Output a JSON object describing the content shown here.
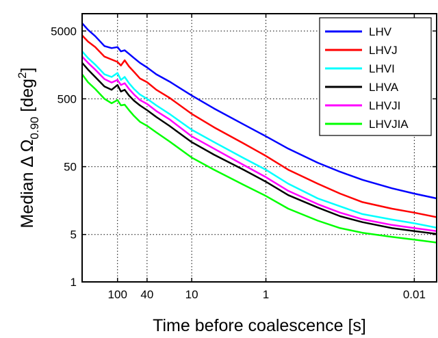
{
  "chart_data": {
    "type": "line",
    "xlabel": "Time before coalescence [s]",
    "ylabel": {
      "main": "Median Δ Ω",
      "sub": "0.90",
      "unit_pre": " [deg",
      "sup": "2",
      "unit_post": "]"
    },
    "x_scale": "log-reversed",
    "y_scale": "log",
    "xlim": [
      300,
      0.005
    ],
    "ylim": [
      1,
      9000
    ],
    "x_ticks": [
      100,
      40,
      10,
      1,
      0.01
    ],
    "x_tick_labels": [
      "100",
      "40",
      "10",
      "1",
      "0.01"
    ],
    "y_ticks": [
      1,
      5,
      50,
      500,
      5000
    ],
    "y_tick_labels": [
      "1",
      "5",
      "50",
      "500",
      "5000"
    ],
    "grid": true,
    "legend_position": "top-right",
    "series": [
      {
        "name": "LHV",
        "color": "#0000ff",
        "points": [
          [
            300,
            6500
          ],
          [
            250,
            5200
          ],
          [
            200,
            4200
          ],
          [
            150,
            3000
          ],
          [
            120,
            2800
          ],
          [
            100,
            2900
          ],
          [
            90,
            2500
          ],
          [
            80,
            2600
          ],
          [
            70,
            2300
          ],
          [
            60,
            2000
          ],
          [
            50,
            1700
          ],
          [
            40,
            1450
          ],
          [
            30,
            1150
          ],
          [
            20,
            900
          ],
          [
            10,
            560
          ],
          [
            5,
            360
          ],
          [
            2,
            210
          ],
          [
            1,
            140
          ],
          [
            0.5,
            92
          ],
          [
            0.2,
            57
          ],
          [
            0.1,
            42
          ],
          [
            0.05,
            32
          ],
          [
            0.02,
            24
          ],
          [
            0.01,
            20
          ],
          [
            0.005,
            17
          ]
        ]
      },
      {
        "name": "LHVJ",
        "color": "#ff0000",
        "points": [
          [
            300,
            4300
          ],
          [
            250,
            3500
          ],
          [
            200,
            2900
          ],
          [
            150,
            2100
          ],
          [
            120,
            1900
          ],
          [
            100,
            1750
          ],
          [
            90,
            1550
          ],
          [
            80,
            1850
          ],
          [
            70,
            1500
          ],
          [
            60,
            1250
          ],
          [
            50,
            1000
          ],
          [
            40,
            880
          ],
          [
            30,
            680
          ],
          [
            20,
            520
          ],
          [
            10,
            300
          ],
          [
            5,
            190
          ],
          [
            2,
            110
          ],
          [
            1,
            72
          ],
          [
            0.5,
            45
          ],
          [
            0.2,
            28
          ],
          [
            0.1,
            20
          ],
          [
            0.05,
            15
          ],
          [
            0.02,
            12
          ],
          [
            0.01,
            10.5
          ],
          [
            0.005,
            9
          ]
        ]
      },
      {
        "name": "LHVI",
        "color": "#00ffff",
        "points": [
          [
            300,
            2500
          ],
          [
            250,
            2000
          ],
          [
            200,
            1600
          ],
          [
            150,
            1150
          ],
          [
            120,
            1050
          ],
          [
            100,
            1200
          ],
          [
            90,
            950
          ],
          [
            80,
            1050
          ],
          [
            70,
            850
          ],
          [
            60,
            700
          ],
          [
            50,
            580
          ],
          [
            40,
            500
          ],
          [
            30,
            400
          ],
          [
            20,
            300
          ],
          [
            10,
            175
          ],
          [
            5,
            115
          ],
          [
            2,
            67
          ],
          [
            1,
            45
          ],
          [
            0.5,
            28
          ],
          [
            0.2,
            17
          ],
          [
            0.1,
            13
          ],
          [
            0.05,
            10
          ],
          [
            0.02,
            8.3
          ],
          [
            0.01,
            7.3
          ],
          [
            0.005,
            6.3
          ]
        ]
      },
      {
        "name": "LHVA",
        "color": "#000000",
        "points": [
          [
            300,
            1700
          ],
          [
            250,
            1350
          ],
          [
            200,
            1050
          ],
          [
            150,
            760
          ],
          [
            120,
            680
          ],
          [
            100,
            800
          ],
          [
            90,
            640
          ],
          [
            80,
            680
          ],
          [
            70,
            560
          ],
          [
            60,
            470
          ],
          [
            50,
            400
          ],
          [
            40,
            340
          ],
          [
            30,
            270
          ],
          [
            20,
            200
          ],
          [
            10,
            115
          ],
          [
            5,
            75
          ],
          [
            2,
            45
          ],
          [
            1,
            30
          ],
          [
            0.5,
            19
          ],
          [
            0.2,
            12.5
          ],
          [
            0.1,
            9.3
          ],
          [
            0.05,
            7.6
          ],
          [
            0.02,
            6.2
          ],
          [
            0.01,
            5.6
          ],
          [
            0.005,
            5.1
          ]
        ]
      },
      {
        "name": "LHVJI",
        "color": "#ff00ff",
        "points": [
          [
            300,
            2100
          ],
          [
            250,
            1700
          ],
          [
            200,
            1350
          ],
          [
            150,
            980
          ],
          [
            120,
            870
          ],
          [
            100,
            950
          ],
          [
            90,
            800
          ],
          [
            80,
            850
          ],
          [
            70,
            700
          ],
          [
            60,
            580
          ],
          [
            50,
            480
          ],
          [
            40,
            420
          ],
          [
            30,
            330
          ],
          [
            20,
            250
          ],
          [
            10,
            140
          ],
          [
            5,
            92
          ],
          [
            2,
            53
          ],
          [
            1,
            35
          ],
          [
            0.5,
            22
          ],
          [
            0.2,
            14
          ],
          [
            0.1,
            10.5
          ],
          [
            0.05,
            8.4
          ],
          [
            0.02,
            6.9
          ],
          [
            0.01,
            6.2
          ],
          [
            0.005,
            5.6
          ]
        ]
      },
      {
        "name": "LHVJIA",
        "color": "#00ff00",
        "points": [
          [
            300,
            1150
          ],
          [
            250,
            880
          ],
          [
            200,
            700
          ],
          [
            150,
            500
          ],
          [
            120,
            430
          ],
          [
            100,
            480
          ],
          [
            90,
            400
          ],
          [
            80,
            410
          ],
          [
            70,
            340
          ],
          [
            60,
            280
          ],
          [
            50,
            230
          ],
          [
            40,
            200
          ],
          [
            30,
            160
          ],
          [
            20,
            118
          ],
          [
            10,
            68
          ],
          [
            5,
            45
          ],
          [
            2,
            27
          ],
          [
            1,
            18.5
          ],
          [
            0.5,
            12
          ],
          [
            0.2,
            8
          ],
          [
            0.1,
            6.2
          ],
          [
            0.05,
            5.3
          ],
          [
            0.02,
            4.6
          ],
          [
            0.01,
            4.2
          ],
          [
            0.005,
            3.8
          ]
        ]
      }
    ]
  }
}
